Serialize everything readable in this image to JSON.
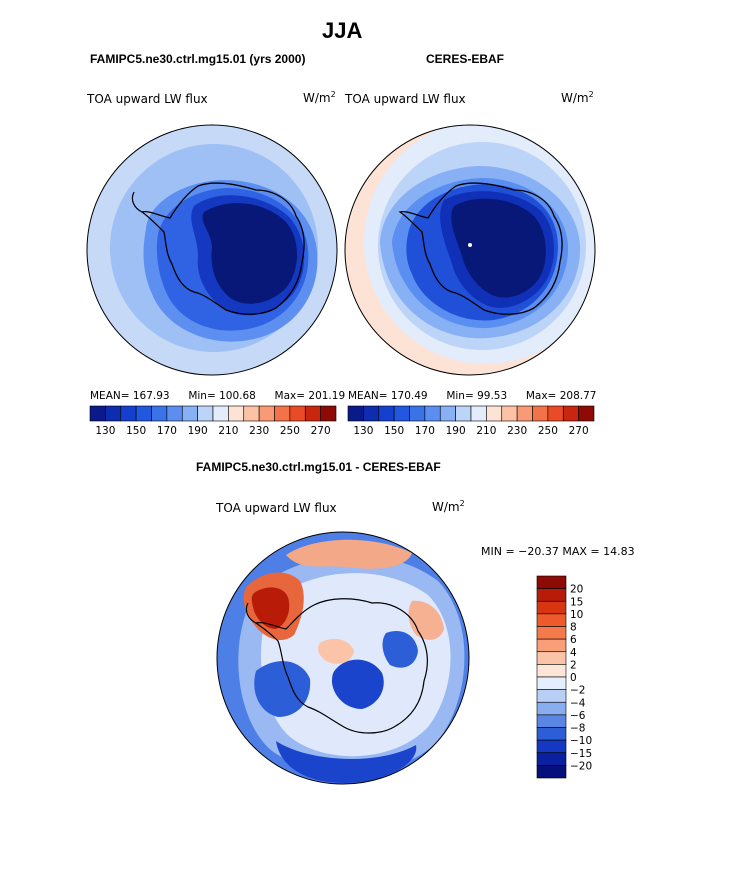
{
  "figure": {
    "season": "JJA",
    "panels": [
      {
        "id": "model",
        "heading": "FAMIPC5.ne30.ctrl.mg15.01 (yrs 2000)",
        "variable": "TOA upward LW flux",
        "units_base": "W/m",
        "units_exp": "2",
        "stats": {
          "mean_label": "MEAN=",
          "mean": "167.93",
          "min_label": "Min=",
          "min": "100.68",
          "max_label": "Max=",
          "max": "201.19"
        }
      },
      {
        "id": "obs",
        "heading": "CERES-EBAF",
        "variable": "TOA upward LW flux",
        "units_base": "W/m",
        "units_exp": "2",
        "stats": {
          "mean_label": "MEAN=",
          "mean": "170.49",
          "min_label": "Min=",
          "min": "99.53",
          "max_label": "Max=",
          "max": "208.77"
        }
      }
    ],
    "diff": {
      "heading": "FAMIPC5.ne30.ctrl.mg15.01 - CERES-EBAF",
      "variable": "TOA upward LW flux",
      "units_base": "W/m",
      "units_exp": "2",
      "minmax_text": "MIN = −20.37 MAX =  14.83"
    }
  },
  "chart_data": [
    {
      "type": "heatmap",
      "projection": "south-polar-stereographic",
      "title": "FAMIPC5.ne30.ctrl.mg15.01 (yrs 2000)",
      "variable": "TOA upward LW flux",
      "units": "W/m^2",
      "stats": {
        "mean": 167.93,
        "min": 100.68,
        "max": 201.19
      },
      "colorbar": {
        "orientation": "horizontal",
        "levels": [
          130,
          140,
          150,
          160,
          170,
          180,
          190,
          200,
          210,
          220,
          230,
          240,
          250,
          260,
          270
        ],
        "tick_labels": [
          "130",
          "150",
          "170",
          "190",
          "210",
          "230",
          "250",
          "270"
        ],
        "colors": [
          "#0a1a8a",
          "#0d2cb0",
          "#1440d0",
          "#2058e0",
          "#3a72e8",
          "#5a8ef0",
          "#88b0f4",
          "#bcd4f8",
          "#e2ecfb",
          "#fde3d5",
          "#fbc2a6",
          "#f89a76",
          "#f2724a",
          "#e84b26",
          "#c8260e",
          "#8e0a04"
        ]
      }
    },
    {
      "type": "heatmap",
      "projection": "south-polar-stereographic",
      "title": "CERES-EBAF",
      "variable": "TOA upward LW flux",
      "units": "W/m^2",
      "stats": {
        "mean": 170.49,
        "min": 99.53,
        "max": 208.77
      },
      "colorbar": {
        "orientation": "horizontal",
        "levels": [
          130,
          140,
          150,
          160,
          170,
          180,
          190,
          200,
          210,
          220,
          230,
          240,
          250,
          260,
          270
        ],
        "tick_labels": [
          "130",
          "150",
          "170",
          "190",
          "210",
          "230",
          "250",
          "270"
        ],
        "colors": [
          "#0a1a8a",
          "#0d2cb0",
          "#1440d0",
          "#2058e0",
          "#3a72e8",
          "#5a8ef0",
          "#88b0f4",
          "#bcd4f8",
          "#e2ecfb",
          "#fde3d5",
          "#fbc2a6",
          "#f89a76",
          "#f2724a",
          "#e84b26",
          "#c8260e",
          "#8e0a04"
        ]
      }
    },
    {
      "type": "heatmap",
      "projection": "south-polar-stereographic",
      "title": "FAMIPC5.ne30.ctrl.mg15.01 - CERES-EBAF",
      "variable": "TOA upward LW flux",
      "units": "W/m^2",
      "stats": {
        "min": -20.37,
        "max": 14.83
      },
      "colorbar": {
        "orientation": "vertical",
        "tick_labels": [
          "20",
          "15",
          "10",
          "8",
          "6",
          "4",
          "2",
          "0",
          "−2",
          "−4",
          "−6",
          "−8",
          "−10",
          "−15",
          "−20"
        ],
        "colors": [
          "#8e0a04",
          "#b81c08",
          "#d83410",
          "#ee5a2c",
          "#f47a4c",
          "#f89e78",
          "#fbc4a8",
          "#fde6d8",
          "#e4eefc",
          "#b8d0f6",
          "#88aef0",
          "#5a86e4",
          "#2c5ed8",
          "#1438c4",
          "#0a20a0",
          "#06107a"
        ]
      }
    }
  ]
}
